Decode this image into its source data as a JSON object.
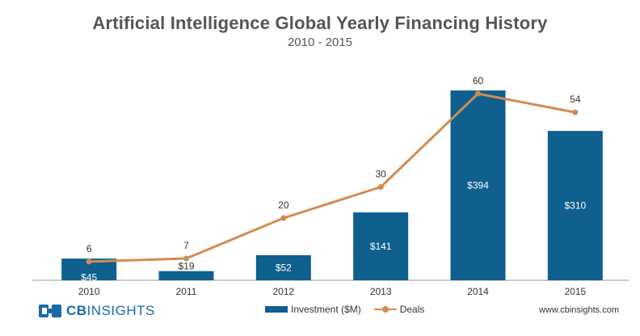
{
  "header": {
    "title": "Artificial Intelligence Global Yearly Financing History",
    "subtitle": "2010 - 2015"
  },
  "footer": {
    "logo_cb": "CB",
    "logo_insights": "INSIGHTS",
    "source": "www.cbinsights.com"
  },
  "colors": {
    "bar": "#0f5f8f",
    "line": "#d08c52",
    "axis": "#999999",
    "label_dark": "#333333",
    "label_light": "#ffffff"
  },
  "chart_data": {
    "type": "bar",
    "categories": [
      "2010",
      "2011",
      "2012",
      "2013",
      "2014",
      "2015"
    ],
    "series": [
      {
        "name": "Investment ($M)",
        "type": "bar",
        "values": [
          45,
          19,
          52,
          141,
          394,
          310
        ],
        "labels": [
          "$45",
          "$19",
          "$52",
          "$141",
          "$394",
          "$310"
        ]
      },
      {
        "name": "Deals",
        "type": "line",
        "values": [
          6,
          7,
          20,
          30,
          60,
          54
        ],
        "labels": [
          "6",
          "7",
          "20",
          "30",
          "60",
          "54"
        ]
      }
    ],
    "title": "Artificial Intelligence Global Yearly Financing History",
    "subtitle": "2010 - 2015",
    "bar_ylim": [
      0,
      394
    ],
    "line_ylim": [
      0,
      60
    ],
    "grid": false,
    "legend_placement": "bottom"
  }
}
